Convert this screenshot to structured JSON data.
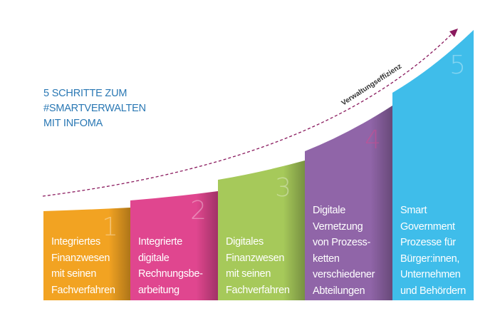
{
  "title": [
    "5 SCHRITTE ZUM",
    "#SMARTVERWALTEN",
    "MIT INFOMA"
  ],
  "arrow_label": "Verwaltungseffizienz",
  "arrow_color": "#8a1a5e",
  "steps": [
    {
      "number": "1",
      "color": "#f2a322",
      "lines": [
        "Integriertes",
        "Finanzwesen",
        "mit seinen",
        "Fachverfahren"
      ]
    },
    {
      "number": "2",
      "color": "#e0468f",
      "lines": [
        "Integrierte",
        "digitale",
        "Rechnungsbe-",
        "arbeitung"
      ]
    },
    {
      "number": "3",
      "color": "#a6c95a",
      "lines": [
        "Digitales",
        "Finanzwesen",
        "mit seinen",
        "Fachverfahren"
      ]
    },
    {
      "number": "4",
      "color": "#9065a8",
      "lines": [
        "Digitale",
        "Vernetzung",
        "von Prozess-",
        "ketten",
        "verschiedener",
        "Abteilungen"
      ]
    },
    {
      "number": "5",
      "color": "#3fbdea",
      "lines": [
        "Smart",
        "Government",
        "Prozesse für",
        "Bürger:innen,",
        "Unternehmen",
        "und Behördern"
      ]
    }
  ]
}
